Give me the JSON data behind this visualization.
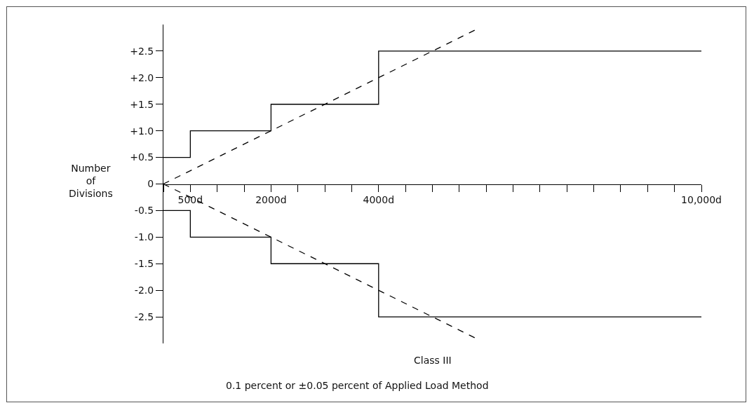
{
  "chart_data": {
    "type": "step",
    "ylabel": "Number of Divisions",
    "xlim": [
      0,
      10000
    ],
    "xticks": [
      {
        "value": 0,
        "label": null
      },
      {
        "value": 500,
        "label": "500d"
      },
      {
        "value": 1000,
        "label": null
      },
      {
        "value": 1500,
        "label": null
      },
      {
        "value": 2000,
        "label": "2000d"
      },
      {
        "value": 2500,
        "label": null
      },
      {
        "value": 3000,
        "label": null
      },
      {
        "value": 3500,
        "label": null
      },
      {
        "value": 4000,
        "label": "4000d"
      },
      {
        "value": 4500,
        "label": null
      },
      {
        "value": 5000,
        "label": null
      },
      {
        "value": 5500,
        "label": null
      },
      {
        "value": 6000,
        "label": null
      },
      {
        "value": 6500,
        "label": null
      },
      {
        "value": 7000,
        "label": null
      },
      {
        "value": 7500,
        "label": null
      },
      {
        "value": 8000,
        "label": null
      },
      {
        "value": 8500,
        "label": null
      },
      {
        "value": 9000,
        "label": null
      },
      {
        "value": 9500,
        "label": null
      },
      {
        "value": 10000,
        "label": "10,000d"
      }
    ],
    "ylim": [
      -3,
      3
    ],
    "yticks": [
      {
        "value": 2.5,
        "label": "+2.5"
      },
      {
        "value": 2,
        "label": "+2.0"
      },
      {
        "value": 1.5,
        "label": "+1.5"
      },
      {
        "value": 1,
        "label": "+1.0"
      },
      {
        "value": 0.5,
        "label": "+0.5"
      },
      0,
      -0.5,
      {
        "value": -1,
        "label": "-1.0"
      },
      -1.5,
      {
        "value": -2,
        "label": "-2.0"
      },
      -2.5
    ],
    "grid": false,
    "marker": "none",
    "series": [
      {
        "color": "#000000",
        "line_style": "solid",
        "x": [
          0,
          500,
          2000,
          4000,
          10000
        ],
        "values": [
          0.5,
          1,
          1.5,
          2.5,
          2.5
        ]
      },
      {
        "color": "#000000",
        "line_style": "solid",
        "x": [
          0,
          500,
          2000,
          4000,
          10000
        ],
        "values": [
          -0.5,
          -1,
          -1.5,
          -2.5,
          -2.5
        ]
      },
      {
        "type": "line",
        "color": "#000000",
        "line_style": "dashed",
        "x": [
          0,
          5800
        ],
        "values": [
          0,
          2.9
        ]
      },
      {
        "type": "line",
        "color": "#000000",
        "line_style": "dashed",
        "x": [
          0,
          5800
        ],
        "values": [
          0,
          -2.9
        ]
      }
    ],
    "annotations": [
      "Class III",
      "0.1 percent or ±0.05 percent of Applied Load Method"
    ]
  }
}
